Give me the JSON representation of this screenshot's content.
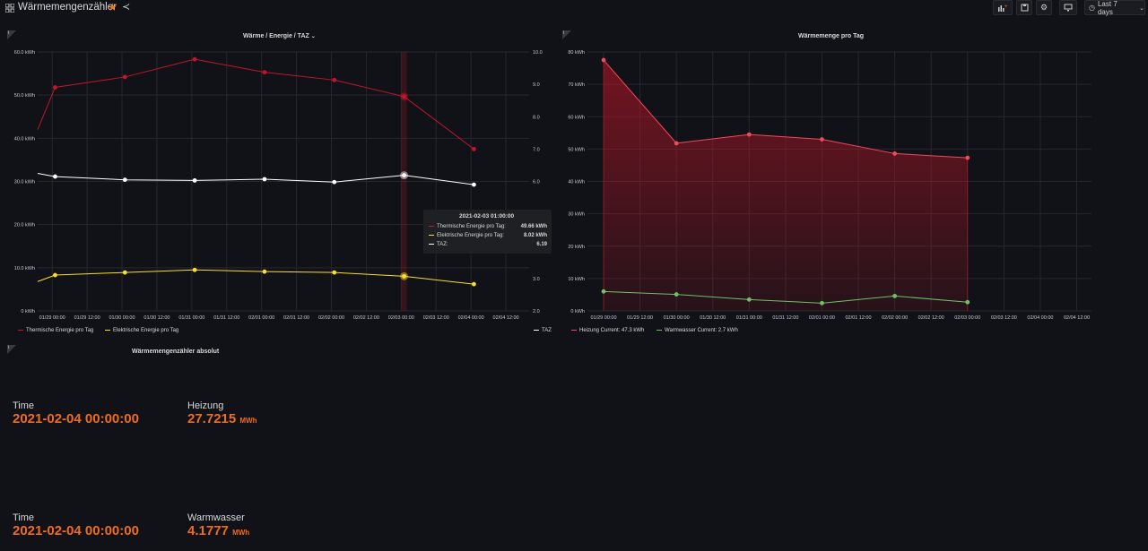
{
  "dashboard": {
    "title": "Wärmemengenzähler",
    "time_range_label": "Last 7 days"
  },
  "panels": {
    "left_chart_title": "Wärme / Energie / TAZ",
    "right_chart_title": "Wärmemenge pro Tag",
    "stat_panel_title": "Wärmemengenzähler absolut"
  },
  "tooltip": {
    "time": "2021-02-03 01:00:00",
    "rows": [
      {
        "name": "Thermische Energie pro Tag:",
        "value": "49.66 kWh",
        "color": "#c4162a"
      },
      {
        "name": "Elektrische Energie pro Tag:",
        "value": "8.02 kWh",
        "color": "#fade2a"
      },
      {
        "name": "TAZ:",
        "value": "6.19",
        "color": "#ffffff"
      }
    ]
  },
  "left_legend": {
    "series1": "Thermische Energie pro Tag",
    "series2": "Elektrische Energie pro Tag",
    "series3": "TAZ"
  },
  "right_legend": {
    "series1": "Heizung  Current: 47.3 kWh",
    "series2": "Warmwasser  Current: 2.7 kWh"
  },
  "stats": [
    {
      "time_label": "Time",
      "time_value": "2021-02-04 00:00:00",
      "label": "Heizung",
      "value": "27.7215",
      "unit": "MWh"
    },
    {
      "time_label": "Time",
      "time_value": "2021-02-04 00:00:00",
      "label": "Warmwasser",
      "value": "4.1777",
      "unit": "MWh"
    }
  ],
  "colors": {
    "background": "#111217",
    "thermal": "#c4162a",
    "electric": "#fade2a",
    "taz": "#ffffff",
    "heizung": "#f2495c",
    "warmwasser": "#73bf69",
    "stat_value": "#ef6c1e"
  },
  "chart_data": [
    {
      "type": "line",
      "title": "Wärme / Energie / TAZ",
      "x_tick_labels": [
        "01/29 00:00",
        "01/29 12:00",
        "01/30 00:00",
        "01/30 12:00",
        "01/31 00:00",
        "01/31 12:00",
        "02/01 00:00",
        "02/01 12:00",
        "02/02 00:00",
        "02/02 12:00",
        "02/03 00:00",
        "02/03 12:00",
        "02/04 00:00",
        "02/04 12:00"
      ],
      "y_left_ticks": [
        "0 kWh",
        "10.0 kWh",
        "20.0 kWh",
        "30.0 kWh",
        "40.0 kWh",
        "50.0 kWh",
        "60.0 kWh"
      ],
      "y_right_ticks": [
        "2.0",
        "3.0",
        "4.0",
        "5.0",
        "6.0",
        "7.0",
        "8.0",
        "9.0",
        "10.0"
      ],
      "ylim_left": [
        0,
        60
      ],
      "ylim_right": [
        2,
        10
      ],
      "series": [
        {
          "name": "Thermische Energie pro Tag",
          "axis": "left",
          "x": [
            "01/28 19:00",
            "01/29 01:00",
            "01/30 01:00",
            "01/31 01:00",
            "02/01 01:00",
            "02/02 01:00",
            "02/03 01:00",
            "02/04 01:00"
          ],
          "values": [
            42.0,
            51.8,
            54.2,
            58.3,
            55.3,
            53.5,
            49.66,
            37.5
          ]
        },
        {
          "name": "Elektrische Energie pro Tag",
          "axis": "left",
          "x": [
            "01/28 19:00",
            "01/29 01:00",
            "01/30 01:00",
            "01/31 01:00",
            "02/01 01:00",
            "02/02 01:00",
            "02/03 01:00",
            "02/04 01:00"
          ],
          "values": [
            6.8,
            8.3,
            8.9,
            9.5,
            9.1,
            8.9,
            8.02,
            6.2
          ]
        },
        {
          "name": "TAZ",
          "axis": "right",
          "x": [
            "01/28 19:00",
            "01/29 01:00",
            "01/30 01:00",
            "01/31 01:00",
            "02/01 01:00",
            "02/02 01:00",
            "02/03 01:00",
            "02/04 01:00"
          ],
          "values": [
            6.25,
            6.15,
            6.05,
            6.03,
            6.07,
            5.98,
            6.19,
            5.9
          ]
        }
      ]
    },
    {
      "type": "area",
      "title": "Wärmemenge pro Tag",
      "x_tick_labels": [
        "01/29 00:00",
        "01/29 12:00",
        "01/30 00:00",
        "01/30 12:00",
        "01/31 00:00",
        "01/31 12:00",
        "02/01 00:00",
        "02/01 12:00",
        "02/02 00:00",
        "02/02 12:00",
        "02/03 00:00",
        "02/03 12:00",
        "02/04 00:00",
        "02/04 12:00"
      ],
      "y_ticks": [
        "0 kWh",
        "10 kWh",
        "20 kWh",
        "30 kWh",
        "40 kWh",
        "50 kWh",
        "60 kWh",
        "70 kWh",
        "80 kWh"
      ],
      "ylim": [
        0,
        80
      ],
      "series": [
        {
          "name": "Heizung",
          "x": [
            "01/29 00:00",
            "01/30 00:00",
            "01/31 00:00",
            "02/01 00:00",
            "02/02 00:00",
            "02/03 00:00"
          ],
          "values": [
            77.5,
            51.8,
            54.5,
            53.0,
            48.6,
            47.3
          ]
        },
        {
          "name": "Warmwasser",
          "x": [
            "01/29 00:00",
            "01/30 00:00",
            "01/31 00:00",
            "02/01 00:00",
            "02/02 00:00",
            "02/03 00:00"
          ],
          "values": [
            6.0,
            5.1,
            3.5,
            2.4,
            4.6,
            2.7
          ]
        }
      ]
    }
  ]
}
